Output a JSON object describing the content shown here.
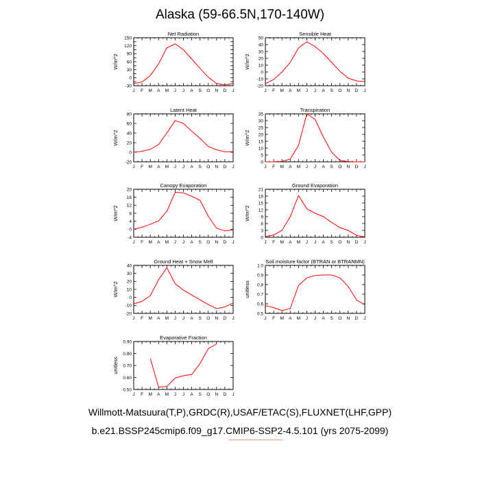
{
  "title": "Alaska (59-66.5N,170-140W)",
  "footer": {
    "line1": "Willmott-Matsuura(T,P),GRDC(R),USAF/ETAC(S),FLUXNET(LHF,GPP)",
    "line2": "b.e21.BSSP245cmip6.f09_g17.CMIP6-SSP2-4.5.101 (yrs 2075-2099)"
  },
  "colors": {
    "series": "#ff0000",
    "axis": "#000000"
  },
  "chart_data": [
    {
      "type": "line",
      "title": "Net Radiation",
      "ylabel": "W/m^2",
      "ylim": [
        -30,
        150
      ],
      "yticks": [
        -30,
        -15,
        0,
        15,
        30,
        45,
        60,
        75,
        90,
        105,
        120,
        135,
        150
      ],
      "ytick_labels": [
        "-30",
        "",
        "0",
        "",
        "30",
        "",
        "60",
        "",
        "90",
        "",
        "120",
        "",
        "150"
      ],
      "categories": [
        "J",
        "F",
        "M",
        "A",
        "M",
        "J",
        "J",
        "A",
        "S",
        "O",
        "N",
        "D",
        "J"
      ],
      "series": [
        {
          "values": [
            -22,
            -16,
            8,
            52,
            112,
            127,
            105,
            70,
            35,
            2,
            -22,
            -27,
            -22
          ]
        }
      ]
    },
    {
      "type": "line",
      "title": "Sensible Heat",
      "ylabel": "W/m^2",
      "ylim": [
        -20,
        50
      ],
      "yticks": [
        -20,
        -10,
        0,
        10,
        20,
        30,
        40,
        50
      ],
      "ytick_labels": [
        "-20",
        "-10",
        "0",
        "10",
        "20",
        "30",
        "40",
        "50"
      ],
      "categories": [
        "J",
        "F",
        "M",
        "A",
        "M",
        "J",
        "J",
        "A",
        "S",
        "O",
        "N",
        "D",
        "J"
      ],
      "series": [
        {
          "values": [
            -17,
            -11,
            0,
            14,
            35,
            44,
            37,
            27,
            14,
            1,
            -9,
            -13,
            -14
          ]
        }
      ]
    },
    {
      "type": "line",
      "title": "Latent Heat",
      "ylabel": "W/m^2",
      "ylim": [
        -20,
        80
      ],
      "yticks": [
        -20,
        0,
        20,
        40,
        60,
        80
      ],
      "ytick_labels": [
        "-20",
        "0",
        "20",
        "40",
        "60",
        "80"
      ],
      "categories": [
        "J",
        "F",
        "M",
        "A",
        "M",
        "J",
        "J",
        "A",
        "S",
        "O",
        "N",
        "D",
        "J"
      ],
      "series": [
        {
          "values": [
            0,
            2,
            6,
            16,
            40,
            66,
            60,
            44,
            29,
            12,
            5,
            1,
            1
          ]
        }
      ]
    },
    {
      "type": "line",
      "title": "Transpiration",
      "ylabel": "W/m^2",
      "ylim": [
        0,
        35
      ],
      "yticks": [
        0,
        5,
        10,
        15,
        20,
        25,
        30,
        35
      ],
      "ytick_labels": [
        "0",
        "5",
        "10",
        "15",
        "20",
        "25",
        "30",
        "35"
      ],
      "categories": [
        "J",
        "F",
        "M",
        "A",
        "M",
        "J",
        "J",
        "A",
        "S",
        "O",
        "N",
        "D",
        "J"
      ],
      "series": [
        {
          "values": [
            0,
            0,
            0.3,
            2,
            12,
            35,
            31,
            18,
            7,
            1,
            0.2,
            0,
            0
          ]
        }
      ]
    },
    {
      "type": "line",
      "title": "Canopy Evaporation",
      "ylabel": "W/m^2",
      "ylim": [
        -4,
        20
      ],
      "yticks": [
        -4,
        0,
        4,
        8,
        12,
        16,
        20
      ],
      "ytick_labels": [
        "-4",
        "0",
        "4",
        "8",
        "12",
        "16",
        "20"
      ],
      "categories": [
        "J",
        "F",
        "M",
        "A",
        "M",
        "J",
        "J",
        "A",
        "S",
        "O",
        "N",
        "D",
        "J"
      ],
      "series": [
        {
          "values": [
            0,
            1,
            2.5,
            4.2,
            9,
            18.5,
            18.2,
            16.5,
            14.5,
            6.5,
            0.5,
            -0.8,
            -0.3
          ]
        }
      ]
    },
    {
      "type": "line",
      "title": "Ground Evaporation",
      "ylabel": "W/m^2",
      "ylim": [
        0,
        21
      ],
      "yticks": [
        0,
        3,
        6,
        9,
        12,
        15,
        18,
        21
      ],
      "ytick_labels": [
        "0",
        "3",
        "6",
        "9",
        "12",
        "15",
        "18",
        "21"
      ],
      "categories": [
        "J",
        "F",
        "M",
        "A",
        "M",
        "J",
        "J",
        "A",
        "S",
        "O",
        "N",
        "D",
        "J"
      ],
      "series": [
        {
          "values": [
            0.3,
            1,
            3,
            9,
            18.2,
            12.5,
            10.5,
            9,
            6.5,
            4.2,
            3,
            0.8,
            0.2
          ]
        }
      ]
    },
    {
      "type": "line",
      "title": "Ground Heat + Snow Melt",
      "ylabel": "W/m^2",
      "ylim": [
        -20,
        40
      ],
      "yticks": [
        -20,
        -10,
        0,
        10,
        20,
        30,
        40
      ],
      "ytick_labels": [
        "-20",
        "-10",
        "0",
        "10",
        "20",
        "30",
        "40"
      ],
      "categories": [
        "J",
        "F",
        "M",
        "A",
        "M",
        "J",
        "J",
        "A",
        "S",
        "O",
        "N",
        "D",
        "J"
      ],
      "series": [
        {
          "values": [
            -8,
            -5,
            2,
            22,
            37,
            17,
            9,
            3,
            -3,
            -9,
            -14,
            -12,
            -7
          ]
        }
      ]
    },
    {
      "type": "line",
      "title": "Soil moisture factor (BTRAN or BTRANMN)",
      "ylabel": "unitless",
      "ylim": [
        0.5,
        1.0
      ],
      "yticks": [
        0.5,
        0.6,
        0.7,
        0.8,
        0.9,
        1.0
      ],
      "ytick_labels": [
        "0.5",
        "0.6",
        "0.7",
        "0.8",
        "0.9",
        "1.0"
      ],
      "categories": [
        "J",
        "F",
        "M",
        "A",
        "M",
        "J",
        "J",
        "A",
        "S",
        "O",
        "N",
        "D",
        "J"
      ],
      "series": [
        {
          "values": [
            0.58,
            0.56,
            0.53,
            0.55,
            0.79,
            0.87,
            0.895,
            0.9,
            0.9,
            0.87,
            0.78,
            0.64,
            0.59
          ]
        }
      ]
    },
    {
      "type": "line",
      "title": "Evaporative Fraction",
      "ylabel": "unitless",
      "ylim": [
        0.5,
        0.9
      ],
      "yticks": [
        0.5,
        0.6,
        0.7,
        0.8,
        0.9
      ],
      "ytick_labels": [
        "0.50",
        "0.60",
        "0.70",
        "0.80",
        "0.90"
      ],
      "categories": [
        "J",
        "F",
        "M",
        "A",
        "M",
        "J",
        "J",
        "A",
        "S",
        "O",
        "N",
        "D",
        "J"
      ],
      "series": [
        {
          "values": [
            null,
            null,
            0.76,
            0.52,
            0.525,
            0.595,
            0.615,
            0.625,
            0.715,
            0.84,
            0.88,
            null,
            null
          ]
        }
      ]
    }
  ]
}
